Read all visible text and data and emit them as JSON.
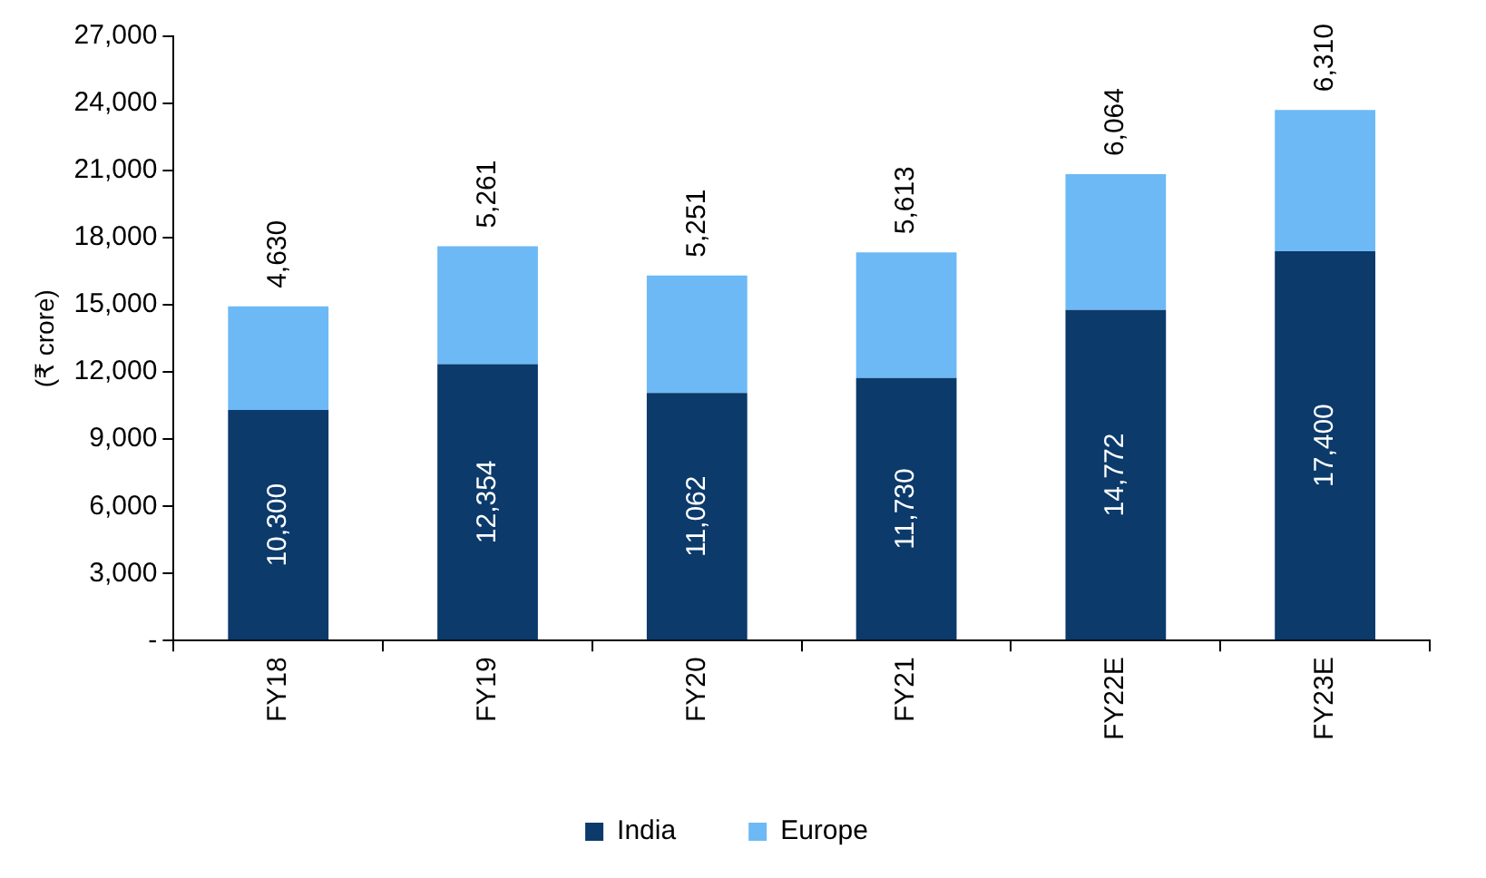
{
  "chart_data": {
    "type": "bar",
    "stacked": true,
    "ylabel": "(₹ crore)",
    "categories": [
      "FY18",
      "FY19",
      "FY20",
      "FY21",
      "FY22E",
      "FY23E"
    ],
    "series": [
      {
        "name": "India",
        "color": "#0b3a6b",
        "values": [
          10300,
          12354,
          11062,
          11730,
          14772,
          17400
        ],
        "value_labels": [
          "10,300",
          "12,354",
          "11,062",
          "11,730",
          "14,772",
          "17,400"
        ]
      },
      {
        "name": "Europe",
        "color": "#6cb9f5",
        "values": [
          4630,
          5261,
          5251,
          5613,
          6064,
          6310
        ],
        "value_labels": [
          "4,630",
          "5,261",
          "5,251",
          "5,613",
          "6,064",
          "6,310"
        ]
      }
    ],
    "ylim": [
      0,
      27000
    ],
    "yticks": [
      {
        "value": 0,
        "label": "-"
      },
      {
        "value": 3000,
        "label": "3,000"
      },
      {
        "value": 6000,
        "label": "6,000"
      },
      {
        "value": 9000,
        "label": "9,000"
      },
      {
        "value": 12000,
        "label": "12,000"
      },
      {
        "value": 15000,
        "label": "15,000"
      },
      {
        "value": 18000,
        "label": "18,000"
      },
      {
        "value": 21000,
        "label": "21,000"
      },
      {
        "value": 24000,
        "label": "24,000"
      },
      {
        "value": 27000,
        "label": "27,000"
      }
    ],
    "grid": false,
    "legend": "bottom"
  }
}
